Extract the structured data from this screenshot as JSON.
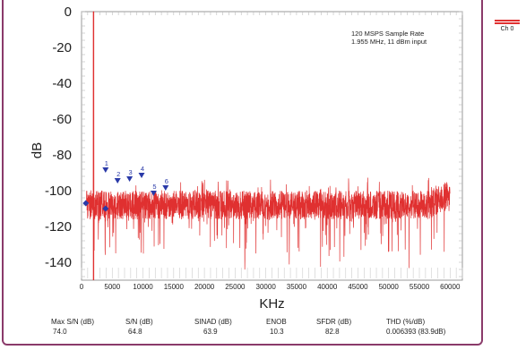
{
  "chart_data": {
    "type": "line",
    "xlabel": "KHz",
    "ylabel": "dB",
    "xlim": [
      0,
      62000
    ],
    "ylim": [
      -150,
      0
    ],
    "x_ticks": [
      0,
      5000,
      10000,
      15000,
      20000,
      25000,
      30000,
      35000,
      40000,
      45000,
      50000,
      55000,
      60000
    ],
    "y_ticks": [
      0,
      -20,
      -40,
      -60,
      -80,
      -100,
      -120,
      -140
    ],
    "annotation": [
      "120 MSPS Sample Rate",
      "1.955 MHz, 11 dBm input"
    ],
    "series": [
      {
        "name": "Ch 0",
        "color": "#e03030",
        "noise_floor_db": -108,
        "fundamental": {
          "x": 1955,
          "y": 0
        }
      }
    ],
    "harmonic_markers": [
      {
        "label": "1",
        "x": 3910,
        "y": -89
      },
      {
        "label": "2",
        "x": 5865,
        "y": -95
      },
      {
        "label": "3",
        "x": 7820,
        "y": -94
      },
      {
        "label": "4",
        "x": 9775,
        "y": -92
      },
      {
        "label": "5",
        "x": 11730,
        "y": -102
      },
      {
        "label": "6",
        "x": 13685,
        "y": -99
      }
    ],
    "spur_markers": [
      {
        "x": 700,
        "y": -107
      },
      {
        "x": 3910,
        "y": -110
      }
    ],
    "marker_color": "#2a3aa8"
  },
  "stats": [
    {
      "label": "Max S/N (dB)",
      "value": "74.0"
    },
    {
      "label": "S/N (dB)",
      "value": "64.8"
    },
    {
      "label": "SINAD (dB)",
      "value": "63.9"
    },
    {
      "label": "ENOB",
      "value": "10.3"
    },
    {
      "label": "SFDR (dB)",
      "value": "82.8"
    },
    {
      "label": "THD (%/dB)",
      "value": "0.006393 (83.9dB)"
    }
  ],
  "legend": {
    "label": "Ch 0"
  }
}
